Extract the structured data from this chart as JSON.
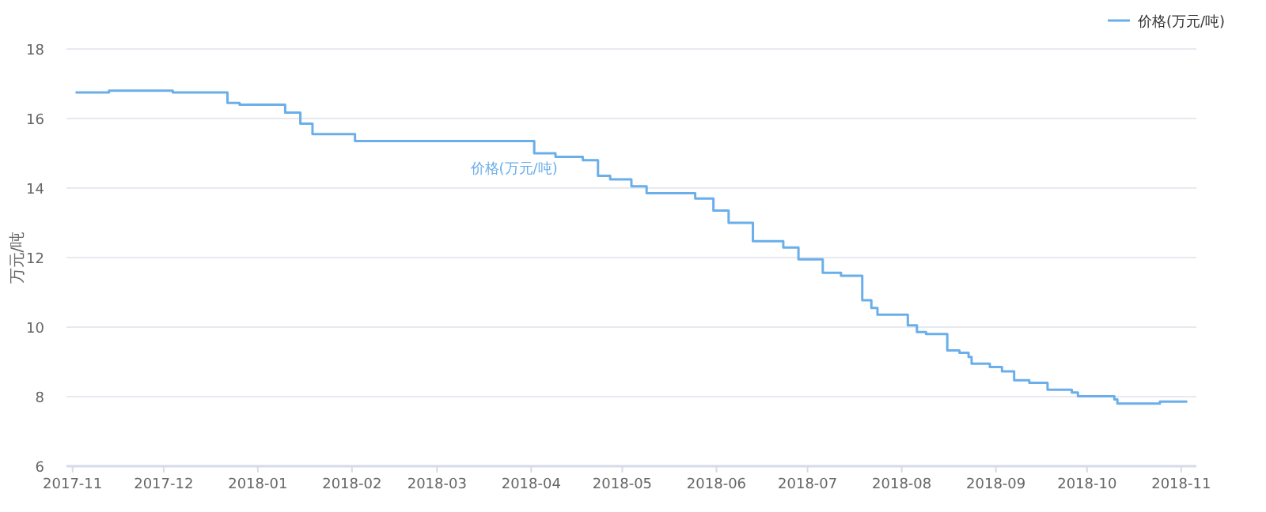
{
  "chart_data": {
    "type": "step",
    "ylabel": "万元/吨",
    "legend": "top right",
    "grid": "y",
    "xlim": [
      "2017-10-30",
      "2018-11-06"
    ],
    "xticks": [
      "2017-11",
      "2017-12",
      "2018-01",
      "2018-02",
      "2018-03",
      "2018-04",
      "2018-05",
      "2018-06",
      "2018-07",
      "2018-08",
      "2018-09",
      "2018-10",
      "2018-11"
    ],
    "ylim": [
      6,
      18
    ],
    "yticks": [
      6,
      8,
      10,
      12,
      14,
      16,
      18
    ],
    "x": [
      "2017-11-02",
      "2017-11-13",
      "2017-12-01",
      "2017-12-04",
      "2017-12-21",
      "2017-12-22",
      "2017-12-26",
      "2018-01-08",
      "2018-01-10",
      "2018-01-12",
      "2018-01-15",
      "2018-01-17",
      "2018-01-19",
      "2018-01-31",
      "2018-02-02",
      "2018-03-30",
      "2018-04-02",
      "2018-04-09",
      "2018-04-17",
      "2018-04-18",
      "2018-04-20",
      "2018-04-23",
      "2018-04-26",
      "2018-04-27",
      "2018-05-03",
      "2018-05-04",
      "2018-05-08",
      "2018-05-09",
      "2018-05-21",
      "2018-05-25",
      "2018-05-31",
      "2018-06-04",
      "2018-06-05",
      "2018-06-08",
      "2018-06-13",
      "2018-06-21",
      "2018-06-23",
      "2018-06-27",
      "2018-06-28",
      "2018-07-04",
      "2018-07-06",
      "2018-07-12",
      "2018-07-17",
      "2018-07-19",
      "2018-07-22",
      "2018-07-24",
      "2018-08-02",
      "2018-08-03",
      "2018-08-06",
      "2018-08-09",
      "2018-08-13",
      "2018-08-16",
      "2018-08-20",
      "2018-08-23",
      "2018-08-24",
      "2018-08-30",
      "2018-09-03",
      "2018-09-07",
      "2018-09-12",
      "2018-09-18",
      "2018-09-26",
      "2018-09-28",
      "2018-10-10",
      "2018-10-11",
      "2018-10-23",
      "2018-10-25",
      "2018-11-03"
    ],
    "series": [
      {
        "name": "价格(万元/吨)",
        "color": "#6aaeea",
        "values": [
          16.75,
          16.8,
          16.8,
          16.75,
          16.75,
          16.45,
          16.4,
          16.4,
          16.17,
          16.17,
          15.85,
          15.85,
          15.55,
          15.55,
          15.35,
          15.35,
          15.0,
          14.9,
          14.9,
          14.8,
          14.8,
          14.35,
          14.35,
          14.25,
          14.25,
          14.05,
          14.05,
          13.85,
          13.85,
          13.7,
          13.35,
          13.35,
          13.0,
          13.0,
          12.47,
          12.47,
          12.29,
          12.29,
          11.95,
          11.95,
          11.56,
          11.48,
          11.48,
          10.77,
          10.55,
          10.36,
          10.36,
          10.05,
          9.86,
          9.8,
          9.8,
          9.33,
          9.26,
          9.14,
          8.95,
          8.85,
          8.73,
          8.47,
          8.4,
          8.2,
          8.12,
          8.01,
          7.92,
          7.8,
          7.8,
          7.86,
          7.86
        ]
      }
    ]
  }
}
